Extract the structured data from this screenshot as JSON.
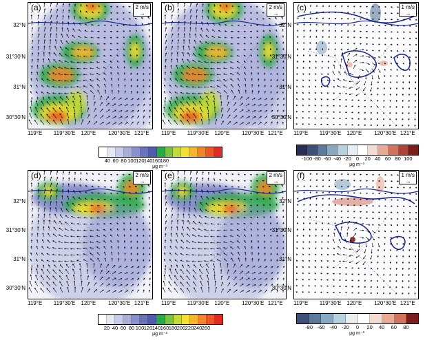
{
  "panels": [
    {
      "id": "a",
      "label": "(a)",
      "ref": "2 m/s",
      "kind": "pm"
    },
    {
      "id": "b",
      "label": "(b)",
      "ref": "2 m/s",
      "kind": "pm"
    },
    {
      "id": "c",
      "label": "(c)",
      "ref": "1 m/s",
      "kind": "diff"
    },
    {
      "id": "d",
      "label": "(d)",
      "ref": "2 m/s",
      "kind": "pm2"
    },
    {
      "id": "e",
      "label": "(e)",
      "ref": "2 m/s",
      "kind": "pm2"
    },
    {
      "id": "f",
      "label": "(f)",
      "ref": "1 m/s",
      "kind": "diff2"
    }
  ],
  "lat_labels": [
    "32°N",
    "31°30'N",
    "31°N",
    "30°30'N"
  ],
  "lon_labels": [
    "119°E",
    "119°30'E",
    "120°E",
    "120°30'E",
    "121°E"
  ],
  "colorbars": {
    "top_left": {
      "ticks": [
        "40",
        "60",
        "80",
        "100",
        "120",
        "140",
        "160",
        "180"
      ],
      "unit": "μg m⁻³",
      "colors": [
        "#ffffff",
        "#e6e7f4",
        "#c9cce8",
        "#a9aedb",
        "#8a90cc",
        "#6c73bd",
        "#525caf",
        "#2aa84a",
        "#7cc242",
        "#c4d93a",
        "#f3e02f",
        "#f7b52c",
        "#f2842a",
        "#ec5526",
        "#e02a22"
      ]
    },
    "top_right": {
      "ticks": [
        "-100",
        "-80",
        "-60",
        "-40",
        "-20",
        "0",
        "20",
        "40",
        "60",
        "80",
        "100"
      ],
      "unit": "μg m⁻³",
      "colors": [
        "#2b2f57",
        "#3e507a",
        "#5b7a9c",
        "#88a9c0",
        "#b9d0dd",
        "#e6eef2",
        "#ffffff",
        "#f3dcd2",
        "#e7aa95",
        "#d27360",
        "#b04238",
        "#7e1e1c"
      ]
    },
    "bottom_left": {
      "ticks": [
        "20",
        "40",
        "60",
        "80",
        "100",
        "120",
        "140",
        "160",
        "180",
        "200",
        "220",
        "240",
        "260"
      ],
      "unit": "μg m⁻³",
      "colors": [
        "#ffffff",
        "#e6e7f4",
        "#c9cce8",
        "#a9aedb",
        "#8a90cc",
        "#6c73bd",
        "#525caf",
        "#2aa84a",
        "#7cc242",
        "#c4d93a",
        "#f3e02f",
        "#f7b52c",
        "#f2842a",
        "#ec5526",
        "#e02a22"
      ]
    },
    "bottom_right": {
      "ticks": [
        "-80",
        "-60",
        "-40",
        "-20",
        "0",
        "20",
        "40",
        "60",
        "80"
      ],
      "unit": "μg m⁻³",
      "colors": [
        "#3e507a",
        "#5b7a9c",
        "#88a9c0",
        "#b9d0dd",
        "#e6eef2",
        "#ffffff",
        "#f3dcd2",
        "#e7aa95",
        "#d27360",
        "#7e1e1c"
      ]
    }
  }
}
